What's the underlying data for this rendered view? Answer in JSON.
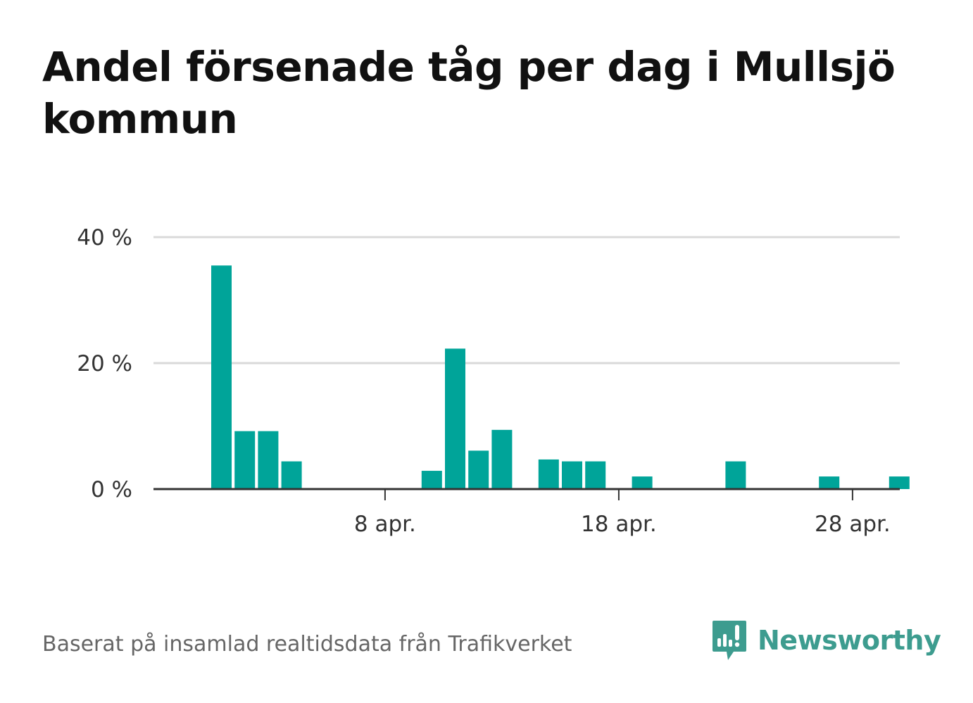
{
  "title": "Andel försenade tåg per dag i Mullsjö kommun",
  "footer": {
    "source": "Baserat på insamlad realtidsdata från Trafikverket",
    "brand": "Newsworthy"
  },
  "colors": {
    "bar": "#00a499",
    "brand": "#3d9c8f",
    "grid": "#d9d9d9",
    "axis": "#333333"
  },
  "icons": [
    "newsworthy-logo-icon"
  ],
  "chart_data": {
    "type": "bar",
    "title": "Andel försenade tåg per dag i Mullsjö kommun",
    "xlabel": "",
    "ylabel": "",
    "x": [
      1,
      2,
      3,
      4,
      5,
      6,
      7,
      8,
      9,
      10,
      11,
      12,
      13,
      14,
      15,
      16,
      17,
      18,
      19,
      20,
      21,
      22,
      23,
      24,
      25,
      26,
      27,
      28,
      29,
      30
    ],
    "x_unit": "day of April",
    "values": [
      35.5,
      9.2,
      9.2,
      4.4,
      0,
      0,
      0,
      0,
      0,
      2.9,
      22.3,
      6.1,
      9.4,
      0,
      4.7,
      4.4,
      4.4,
      0,
      2.0,
      0,
      0,
      0,
      4.4,
      0,
      0,
      0,
      2.0,
      0,
      0,
      2.0
    ],
    "value_unit": "%",
    "ylim": [
      0,
      40
    ],
    "yticks": [
      {
        "value": 0,
        "label": "0 %"
      },
      {
        "value": 20,
        "label": "20 %"
      },
      {
        "value": 40,
        "label": "40 %"
      }
    ],
    "xticks": [
      {
        "value": 8,
        "label": "8 apr."
      },
      {
        "value": 18,
        "label": "18 apr."
      },
      {
        "value": 28,
        "label": "28 apr."
      }
    ],
    "grid": true,
    "legend": "none"
  }
}
